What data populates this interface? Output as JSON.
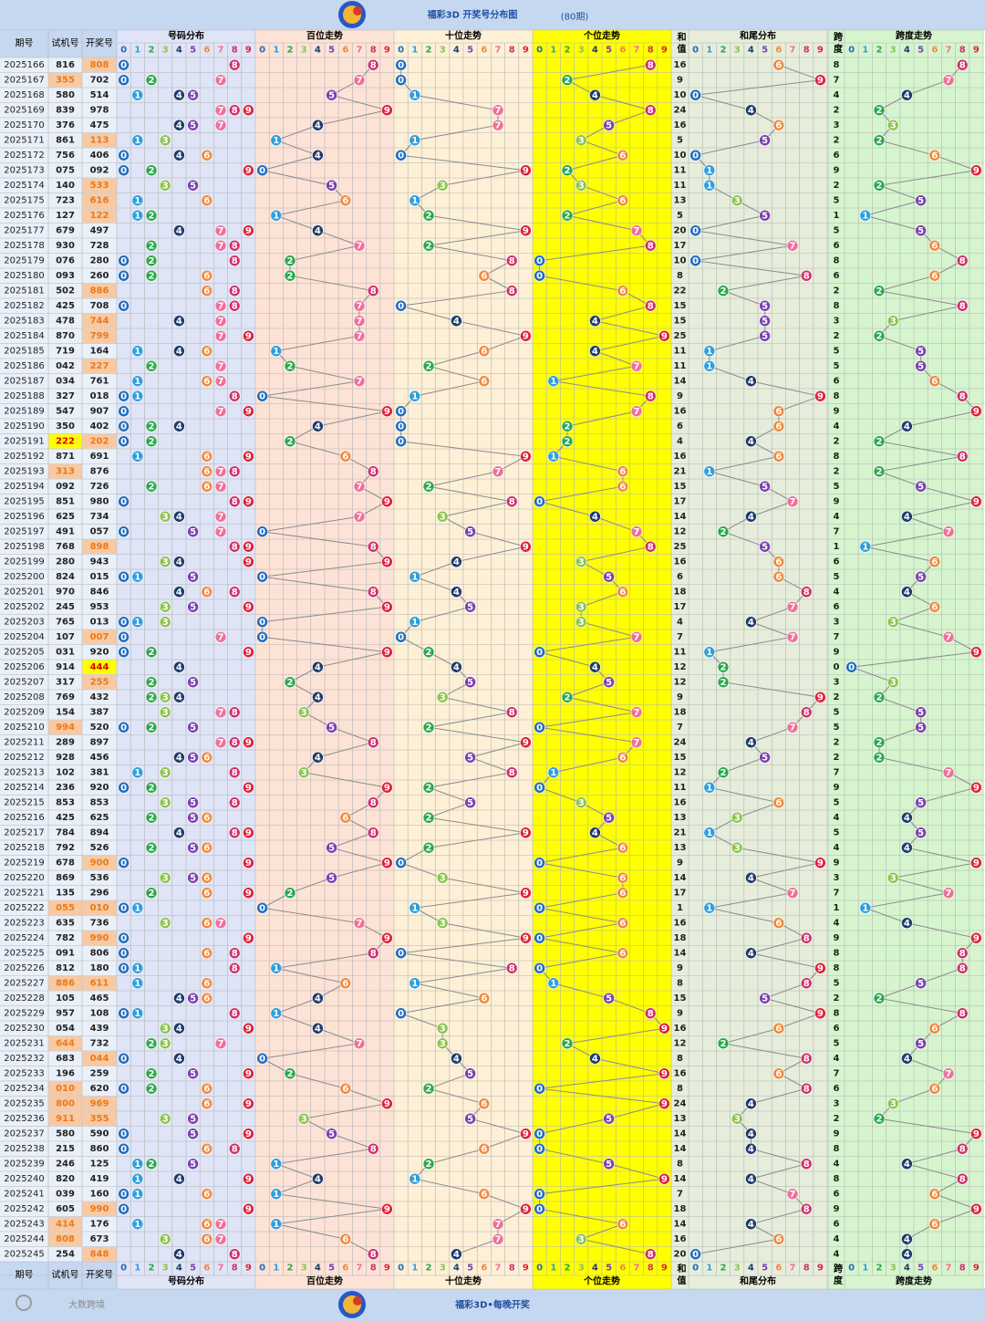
{
  "title": "福彩3D 开奖号分布图",
  "subtitle": "(80期)",
  "headers": {
    "period": "期号",
    "trial": "试机号",
    "draw": "开奖号",
    "dist": "号码分布",
    "hundreds": "百位走势",
    "tens": "十位走势",
    "units": "个位走势",
    "sum": "和值",
    "tail": "和尾分布",
    "span": "跨度",
    "spanTrend": "跨度走势"
  },
  "digits": [
    "0",
    "1",
    "2",
    "3",
    "4",
    "5",
    "6",
    "7",
    "8",
    "9"
  ],
  "rows": [
    [
      2025166,
      "816",
      "808",
      16,
      8
    ],
    [
      2025167,
      "355",
      "702",
      9,
      7
    ],
    [
      2025168,
      "580",
      "514",
      10,
      4
    ],
    [
      2025169,
      "839",
      "978",
      24,
      2
    ],
    [
      2025170,
      "376",
      "475",
      16,
      3
    ],
    [
      2025171,
      "861",
      "113",
      5,
      2
    ],
    [
      2025172,
      "756",
      "406",
      10,
      6
    ],
    [
      2025173,
      "075",
      "092",
      11,
      9
    ],
    [
      2025174,
      "140",
      "533",
      11,
      2
    ],
    [
      2025175,
      "723",
      "616",
      13,
      5
    ],
    [
      2025176,
      "127",
      "122",
      5,
      1
    ],
    [
      2025177,
      "679",
      "497",
      20,
      5
    ],
    [
      2025178,
      "930",
      "728",
      17,
      6
    ],
    [
      2025179,
      "076",
      "280",
      10,
      8
    ],
    [
      2025180,
      "093",
      "260",
      8,
      6
    ],
    [
      2025181,
      "502",
      "886",
      22,
      2
    ],
    [
      2025182,
      "425",
      "708",
      15,
      8
    ],
    [
      2025183,
      "478",
      "744",
      15,
      3
    ],
    [
      2025184,
      "870",
      "799",
      25,
      2
    ],
    [
      2025185,
      "719",
      "164",
      11,
      5
    ],
    [
      2025186,
      "042",
      "227",
      11,
      5
    ],
    [
      2025187,
      "034",
      "761",
      14,
      6
    ],
    [
      2025188,
      "327",
      "018",
      9,
      8
    ],
    [
      2025189,
      "547",
      "907",
      16,
      9
    ],
    [
      2025190,
      "350",
      "402",
      6,
      4
    ],
    [
      2025191,
      "222",
      "202",
      4,
      2
    ],
    [
      2025192,
      "871",
      "691",
      16,
      8
    ],
    [
      2025193,
      "313",
      "876",
      21,
      2
    ],
    [
      2025194,
      "092",
      "726",
      15,
      5
    ],
    [
      2025195,
      "851",
      "980",
      17,
      9
    ],
    [
      2025196,
      "625",
      "734",
      14,
      4
    ],
    [
      2025197,
      "491",
      "057",
      12,
      7
    ],
    [
      2025198,
      "768",
      "898",
      25,
      1
    ],
    [
      2025199,
      "280",
      "943",
      16,
      6
    ],
    [
      2025200,
      "824",
      "015",
      6,
      5
    ],
    [
      2025201,
      "970",
      "846",
      18,
      4
    ],
    [
      2025202,
      "245",
      "953",
      17,
      6
    ],
    [
      2025203,
      "765",
      "013",
      4,
      3
    ],
    [
      2025204,
      "107",
      "007",
      7,
      7
    ],
    [
      2025205,
      "031",
      "920",
      11,
      9
    ],
    [
      2025206,
      "914",
      "444",
      12,
      0
    ],
    [
      2025207,
      "317",
      "255",
      12,
      3
    ],
    [
      2025208,
      "769",
      "432",
      9,
      2
    ],
    [
      2025209,
      "154",
      "387",
      18,
      5
    ],
    [
      2025210,
      "994",
      "520",
      7,
      5
    ],
    [
      2025211,
      "289",
      "897",
      24,
      2
    ],
    [
      2025212,
      "928",
      "456",
      15,
      2
    ],
    [
      2025213,
      "102",
      "381",
      12,
      7
    ],
    [
      2025214,
      "236",
      "920",
      11,
      9
    ],
    [
      2025215,
      "853",
      "853",
      16,
      5
    ],
    [
      2025216,
      "425",
      "625",
      13,
      4
    ],
    [
      2025217,
      "784",
      "894",
      21,
      5
    ],
    [
      2025218,
      "792",
      "526",
      13,
      4
    ],
    [
      2025219,
      "678",
      "900",
      9,
      9
    ],
    [
      2025220,
      "869",
      "536",
      14,
      3
    ],
    [
      2025221,
      "135",
      "296",
      17,
      7
    ],
    [
      2025222,
      "055",
      "010",
      1,
      1
    ],
    [
      2025223,
      "635",
      "736",
      16,
      4
    ],
    [
      2025224,
      "782",
      "990",
      18,
      9
    ],
    [
      2025225,
      "091",
      "806",
      14,
      8
    ],
    [
      2025226,
      "812",
      "180",
      9,
      8
    ],
    [
      2025227,
      "886",
      "611",
      8,
      5
    ],
    [
      2025228,
      "105",
      "465",
      15,
      2
    ],
    [
      2025229,
      "957",
      "108",
      9,
      8
    ],
    [
      2025230,
      "054",
      "439",
      16,
      6
    ],
    [
      2025231,
      "644",
      "732",
      12,
      5
    ],
    [
      2025232,
      "683",
      "044",
      8,
      4
    ],
    [
      2025233,
      "196",
      "259",
      16,
      7
    ],
    [
      2025234,
      "010",
      "620",
      8,
      6
    ],
    [
      2025235,
      "800",
      "969",
      24,
      3
    ],
    [
      2025236,
      "911",
      "355",
      13,
      2
    ],
    [
      2025237,
      "580",
      "590",
      14,
      9
    ],
    [
      2025238,
      "215",
      "860",
      14,
      8
    ],
    [
      2025239,
      "246",
      "125",
      8,
      4
    ],
    [
      2025240,
      "820",
      "419",
      14,
      8
    ],
    [
      2025241,
      "039",
      "160",
      7,
      6
    ],
    [
      2025242,
      "605",
      "990",
      18,
      9
    ],
    [
      2025243,
      "414",
      "176",
      14,
      6
    ],
    [
      2025244,
      "808",
      "673",
      16,
      4
    ],
    [
      2025245,
      "254",
      "848",
      20,
      4
    ]
  ],
  "footer": "福彩3D•每晚开奖",
  "brand": "大数跨境"
}
